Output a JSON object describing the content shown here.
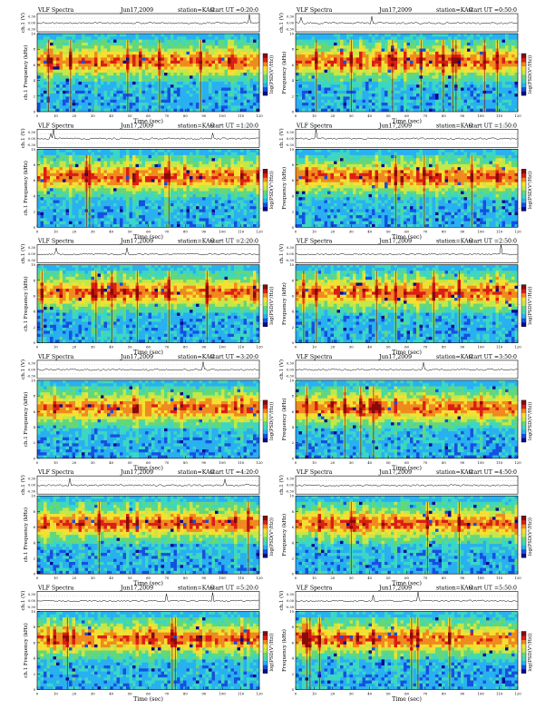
{
  "figure": {
    "colorbar_label": "log(PSD(V²/Hz))",
    "xlabel": "Time (sec)",
    "trace_ylabel": "ch.1 (V)",
    "spec_ylabel": "Frequency (kHz)",
    "spec_ylabel_left": "ch.1 Frequency (kHz)",
    "palette": [
      "#0a0a8c",
      "#1550e0",
      "#29b0f0",
      "#3cd7c3",
      "#64d77a",
      "#c2e84a",
      "#f5e032",
      "#f08a1e",
      "#dc1e14",
      "#8a0a0a"
    ],
    "colorbar_ticks": [
      "-",
      "-",
      "-"
    ]
  },
  "chart_data": [
    {
      "type": "heatmap",
      "title_left": "VLF Spectra",
      "date": "Jun17,2009",
      "station": "station=KAG",
      "start": "start UT =0:20:0",
      "xlim": [
        0,
        120
      ],
      "xticks": [
        0,
        10,
        20,
        30,
        40,
        50,
        60,
        70,
        80,
        90,
        100,
        110,
        120
      ],
      "trace_ylim": [
        -0.3,
        0.3
      ],
      "trace_yticks": [
        "0.30",
        "0.00",
        "-0.30"
      ],
      "ylim": [
        0,
        10
      ],
      "yticks": [
        0,
        2,
        4,
        6,
        8,
        10
      ],
      "band_top_khz": 9.2,
      "seed": 11
    },
    {
      "type": "heatmap",
      "title_left": "VLF Spectra",
      "date": "Jun17,2009",
      "station": "station=KAG",
      "start": "start UT =0:50:0",
      "xlim": [
        0,
        120
      ],
      "xticks": [
        0,
        10,
        20,
        30,
        40,
        50,
        60,
        70,
        80,
        90,
        100,
        110,
        120
      ],
      "trace_ylim": [
        -0.3,
        0.3
      ],
      "trace_yticks": [
        "0.30",
        "0.00",
        "-0.30"
      ],
      "ylim": [
        0,
        10
      ],
      "yticks": [
        0,
        2,
        4,
        6,
        8,
        10
      ],
      "band_top_khz": 9.2,
      "seed": 23
    },
    {
      "type": "heatmap",
      "title_left": "VLF Spectra",
      "date": "Jun17,2009",
      "station": "station=KAG",
      "start": "start UT =1:20:0",
      "xlim": [
        0,
        120
      ],
      "xticks": [
        0,
        10,
        20,
        30,
        40,
        50,
        60,
        70,
        80,
        90,
        100,
        110,
        120
      ],
      "trace_ylim": [
        -0.3,
        0.3
      ],
      "trace_yticks": [
        "0.30",
        "0.00",
        "-0.30"
      ],
      "ylim": [
        0,
        10
      ],
      "yticks": [
        0,
        2,
        4,
        6,
        8,
        10
      ],
      "band_top_khz": 9.2,
      "seed": 37
    },
    {
      "type": "heatmap",
      "title_left": "VLF Spectra",
      "date": "Jun17,2009",
      "station": "station=KAG",
      "start": "start UT =1:50:0",
      "xlim": [
        0,
        120
      ],
      "xticks": [
        0,
        10,
        20,
        30,
        40,
        50,
        60,
        70,
        80,
        90,
        100,
        110,
        120
      ],
      "trace_ylim": [
        -0.3,
        0.3
      ],
      "trace_yticks": [
        "0.30",
        "0.00",
        "-0.30"
      ],
      "ylim": [
        0,
        10
      ],
      "yticks": [
        0,
        2,
        4,
        6,
        8,
        10
      ],
      "band_top_khz": 9.2,
      "seed": 41
    },
    {
      "type": "heatmap",
      "title_left": "VLF Spectra",
      "date": "Jun17,2009",
      "station": "station=KAG",
      "start": "start UT =2:20:0",
      "xlim": [
        0,
        120
      ],
      "xticks": [
        0,
        10,
        20,
        30,
        40,
        50,
        60,
        70,
        80,
        90,
        100,
        110,
        120
      ],
      "trace_ylim": [
        -0.3,
        0.3
      ],
      "trace_yticks": [
        "0.30",
        "0.00",
        "-0.30"
      ],
      "ylim": [
        0,
        10
      ],
      "yticks": [
        0,
        2,
        4,
        6,
        8,
        10
      ],
      "band_top_khz": 9.2,
      "seed": 53
    },
    {
      "type": "heatmap",
      "title_left": "VLF Spectra",
      "date": "Jun17,2009",
      "station": "station=KAG",
      "start": "start UT =2:50:0",
      "xlim": [
        0,
        120
      ],
      "xticks": [
        0,
        10,
        20,
        30,
        40,
        50,
        60,
        70,
        80,
        90,
        100,
        110,
        120
      ],
      "trace_ylim": [
        -0.3,
        0.3
      ],
      "trace_yticks": [
        "0.30",
        "0.00",
        "-0.30"
      ],
      "ylim": [
        0,
        10
      ],
      "yticks": [
        0,
        2,
        4,
        6,
        8,
        10
      ],
      "band_top_khz": 9.2,
      "seed": 67
    },
    {
      "type": "heatmap",
      "title_left": "VLF Spectra",
      "date": "Jun17,2009",
      "station": "station=KAG",
      "start": "start UT =3:20:0",
      "xlim": [
        0,
        120
      ],
      "xticks": [
        0,
        10,
        20,
        30,
        40,
        50,
        60,
        70,
        80,
        90,
        100,
        110,
        120
      ],
      "trace_ylim": [
        -0.3,
        0.3
      ],
      "trace_yticks": [
        "0.30",
        "0.00",
        "-0.30"
      ],
      "ylim": [
        0,
        10
      ],
      "yticks": [
        0,
        2,
        4,
        6,
        8,
        10
      ],
      "band_top_khz": 9.2,
      "seed": 71
    },
    {
      "type": "heatmap",
      "title_left": "VLF Spectra",
      "date": "Jun17,2009",
      "station": "station=KAG",
      "start": "start UT =3:50:0",
      "xlim": [
        0,
        120
      ],
      "xticks": [
        0,
        10,
        20,
        30,
        40,
        50,
        60,
        70,
        80,
        90,
        100,
        110,
        120
      ],
      "trace_ylim": [
        -0.3,
        0.3
      ],
      "trace_yticks": [
        "0.30",
        "0.00",
        "-0.30"
      ],
      "ylim": [
        0,
        10
      ],
      "yticks": [
        0,
        2,
        4,
        6,
        8,
        10
      ],
      "band_top_khz": 9.2,
      "seed": 83
    },
    {
      "type": "heatmap",
      "title_left": "VLF Spectra",
      "date": "Jun17,2009",
      "station": "station=KAG",
      "start": "start UT =4:20:0",
      "xlim": [
        0,
        120
      ],
      "xticks": [
        0,
        10,
        20,
        30,
        40,
        50,
        60,
        70,
        80,
        90,
        100,
        110,
        120
      ],
      "trace_ylim": [
        -0.3,
        0.3
      ],
      "trace_yticks": [
        "0.30",
        "0.00",
        "-0.30"
      ],
      "ylim": [
        0,
        10
      ],
      "yticks": [
        0,
        2,
        4,
        6,
        8,
        10
      ],
      "band_top_khz": 9.2,
      "seed": 97
    },
    {
      "type": "heatmap",
      "title_left": "VLF Spectra",
      "date": "Jun17,2009",
      "station": "station=KAG",
      "start": "start UT =4:50:0",
      "xlim": [
        0,
        120
      ],
      "xticks": [
        0,
        10,
        20,
        30,
        40,
        50,
        60,
        70,
        80,
        90,
        100,
        110,
        120
      ],
      "trace_ylim": [
        -0.3,
        0.3
      ],
      "trace_yticks": [
        "0.30",
        "0.00",
        "-0.30"
      ],
      "ylim": [
        0,
        10
      ],
      "yticks": [
        0,
        2,
        4,
        6,
        8,
        10
      ],
      "band_top_khz": 9.2,
      "seed": 101
    },
    {
      "type": "heatmap",
      "title_left": "VLF Spectra",
      "date": "Jun17,2009",
      "station": "station=KAG",
      "start": "start UT =5:20:0",
      "xlim": [
        0,
        120
      ],
      "xticks": [
        0,
        10,
        20,
        30,
        40,
        50,
        60,
        70,
        80,
        90,
        100,
        110,
        120
      ],
      "trace_ylim": [
        -0.3,
        0.3
      ],
      "trace_yticks": [
        "0.30",
        "0.00",
        "-0.30"
      ],
      "ylim": [
        0,
        10
      ],
      "yticks": [
        0,
        2,
        4,
        6,
        8,
        10
      ],
      "band_top_khz": 9.2,
      "seed": 113
    },
    {
      "type": "heatmap",
      "title_left": "VLF Spectra",
      "date": "Jun17,2009",
      "station": "station=KAG",
      "start": "start UT =5:50:0",
      "xlim": [
        0,
        120
      ],
      "xticks": [
        0,
        10,
        20,
        30,
        40,
        50,
        60,
        70,
        80,
        90,
        100,
        110,
        120
      ],
      "trace_ylim": [
        -0.3,
        0.3
      ],
      "trace_yticks": [
        "0.30",
        "0.00",
        "-0.30"
      ],
      "ylim": [
        0,
        10
      ],
      "yticks": [
        0,
        2,
        4,
        6,
        8,
        10
      ],
      "band_top_khz": 9.2,
      "seed": 127
    }
  ]
}
